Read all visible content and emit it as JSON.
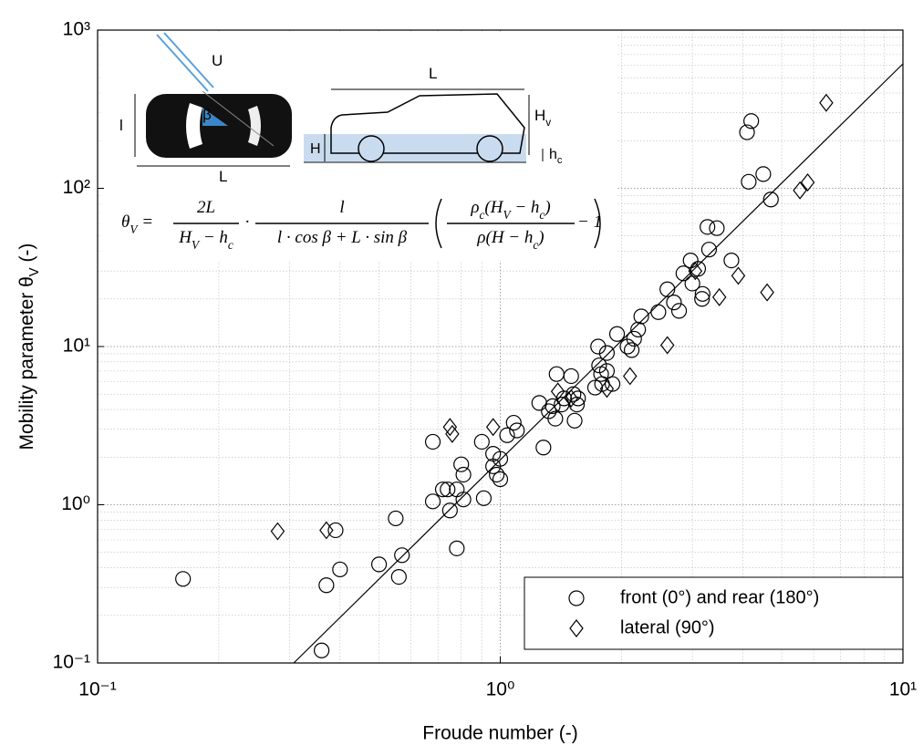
{
  "chart_data": {
    "type": "scatter",
    "xlabel": "Froude number (-)",
    "ylabel": [
      "Mobility parameter θ",
      "V",
      " (-)"
    ],
    "xscale": "log",
    "yscale": "log",
    "xlim": [
      0.1,
      10
    ],
    "ylim": [
      0.1,
      1000
    ],
    "xticks": [
      {
        "value": 0.1,
        "label": "10⁻¹"
      },
      {
        "value": 1,
        "label": "10⁰"
      },
      {
        "value": 10,
        "label": "10¹"
      }
    ],
    "yticks": [
      {
        "value": 0.1,
        "label": "10⁻¹"
      },
      {
        "value": 1,
        "label": "10⁰"
      },
      {
        "value": 10,
        "label": "10¹"
      },
      {
        "value": 100,
        "label": "10²"
      },
      {
        "value": 1000,
        "label": "10³"
      }
    ],
    "grid": true,
    "minor_grid": true,
    "legend": "lower right",
    "series": [
      {
        "name": "front (0°) and rear (180°)",
        "marker": "circle",
        "color": "#000000",
        "x": [
          0.163,
          0.36,
          0.37,
          0.39,
          0.4,
          0.5,
          0.55,
          0.56,
          0.57,
          0.68,
          0.68,
          0.72,
          0.74,
          0.75,
          0.78,
          0.78,
          0.8,
          0.81,
          0.81,
          0.9,
          0.91,
          0.96,
          0.96,
          0.98,
          1.0,
          1.0,
          1.04,
          1.08,
          1.1,
          1.28,
          1.25,
          1.32,
          1.35,
          1.37,
          1.38,
          1.42,
          1.44,
          1.5,
          1.52,
          1.53,
          1.56,
          1.55,
          1.72,
          1.75,
          1.76,
          1.79,
          1.78,
          1.84,
          1.84,
          1.9,
          1.95,
          2.07,
          2.12,
          2.15,
          2.2,
          2.24,
          2.47,
          2.6,
          2.7,
          2.78,
          2.85,
          2.97,
          3.0,
          3.1,
          3.18,
          3.17,
          3.27,
          3.3,
          3.45,
          3.75,
          4.1,
          4.2,
          4.14,
          4.5,
          4.7
        ],
        "y": [
          0.34,
          0.12,
          0.31,
          0.69,
          0.39,
          0.42,
          0.82,
          0.35,
          0.48,
          2.5,
          1.05,
          1.25,
          1.25,
          0.92,
          0.53,
          1.25,
          1.8,
          1.55,
          1.08,
          2.5,
          1.1,
          2.1,
          1.75,
          1.55,
          1.95,
          1.45,
          2.75,
          3.3,
          2.95,
          2.3,
          4.4,
          3.9,
          4.2,
          3.5,
          6.7,
          4.3,
          4.7,
          6.5,
          5.0,
          3.4,
          4.7,
          4.3,
          5.5,
          10.0,
          7.6,
          5.8,
          6.7,
          7.0,
          9.1,
          5.8,
          12,
          10,
          9.5,
          11.2,
          12.8,
          15.5,
          16.5,
          23,
          19,
          16.8,
          29,
          35,
          25,
          31,
          21.5,
          20,
          57,
          41,
          56,
          35,
          226,
          266,
          110,
          123,
          85
        ]
      },
      {
        "name": "lateral (90°)",
        "marker": "diamond",
        "color": "#000000",
        "x": [
          0.28,
          0.37,
          0.75,
          0.76,
          0.96,
          1.39,
          1.5,
          1.84,
          2.1,
          2.6,
          3.05,
          3.5,
          3.9,
          4.6,
          5.55,
          5.8,
          6.45
        ],
        "y": [
          0.68,
          0.69,
          3.1,
          2.8,
          3.1,
          5.2,
          4.7,
          5.4,
          6.5,
          10.2,
          30,
          20.5,
          28,
          22,
          97,
          109,
          347
        ]
      }
    ],
    "fit": {
      "x": [
        0.307,
        10
      ],
      "y": [
        0.1,
        612
      ]
    },
    "annotations": [
      [
        "U"
      ],
      [
        "β"
      ],
      [
        "l"
      ],
      [
        "L"
      ],
      [
        "L"
      ],
      [
        "H",
        "v"
      ],
      [
        "H"
      ],
      [
        "h",
        "c"
      ]
    ],
    "formula": {
      "lhs": [
        "θ",
        "V",
        " ="
      ],
      "f1_num": [
        "2L"
      ],
      "f1_den": [
        "H",
        "V",
        " − h",
        "c"
      ],
      "dot": [
        "·"
      ],
      "f2_num": [
        "l"
      ],
      "f2_den": [
        "l · cos β + L · sin β"
      ],
      "f3_num": [
        "ρ",
        "c",
        "(H",
        "V",
        " − h",
        "c",
        ")"
      ],
      "f3_den": [
        "ρ(H − h",
        "c",
        ")"
      ],
      "tail": [
        "− 1"
      ]
    }
  }
}
